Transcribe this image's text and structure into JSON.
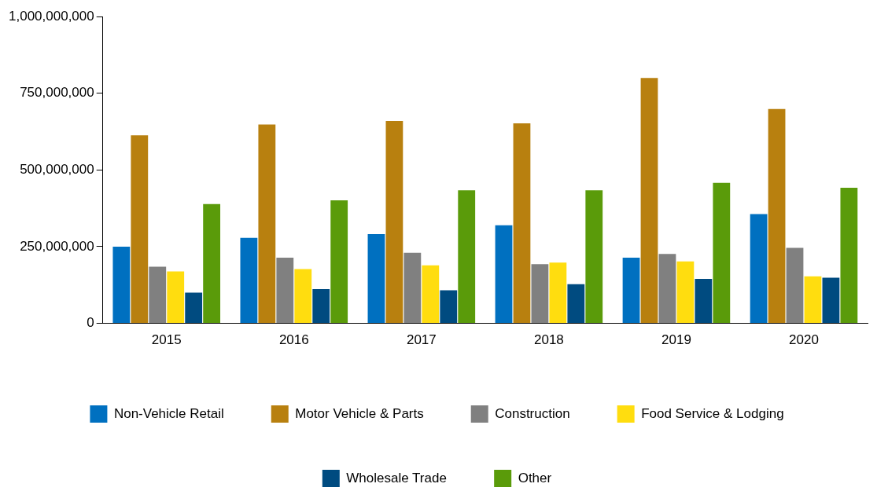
{
  "chart_data": {
    "type": "bar",
    "categories": [
      "2015",
      "2016",
      "2017",
      "2018",
      "2019",
      "2020"
    ],
    "series": [
      {
        "name": "Non-Vehicle Retail",
        "color": "#0070c0",
        "values": [
          250000000,
          279000000,
          291000000,
          320000000,
          214000000,
          356000000
        ]
      },
      {
        "name": "Motor Vehicle & Parts",
        "color": "#b8800f",
        "values": [
          613000000,
          648000000,
          660000000,
          652000000,
          800000000,
          699000000
        ]
      },
      {
        "name": "Construction",
        "color": "#808080",
        "values": [
          185000000,
          214000000,
          230000000,
          193000000,
          226000000,
          246000000
        ]
      },
      {
        "name": "Food Service & Lodging",
        "color": "#ffdd0f",
        "values": [
          169000000,
          177000000,
          189000000,
          198000000,
          202000000,
          153000000
        ]
      },
      {
        "name": "Wholesale Trade",
        "color": "#004b80",
        "values": [
          100000000,
          112000000,
          108000000,
          128000000,
          145000000,
          149000000
        ]
      },
      {
        "name": "Other",
        "color": "#5a9b0a",
        "values": [
          389000000,
          401000000,
          434000000,
          434000000,
          458000000,
          442000000
        ]
      }
    ],
    "ylim": [
      0,
      1000000000
    ],
    "yticks": [
      {
        "value": 0,
        "label": "0"
      },
      {
        "value": 250000000,
        "label": "250,000,000"
      },
      {
        "value": 500000000,
        "label": "500,000,000"
      },
      {
        "value": 750000000,
        "label": "750,000,000"
      },
      {
        "value": 1000000000,
        "label": "1,000,000,000"
      }
    ],
    "grid": false,
    "legend": "bottom"
  }
}
